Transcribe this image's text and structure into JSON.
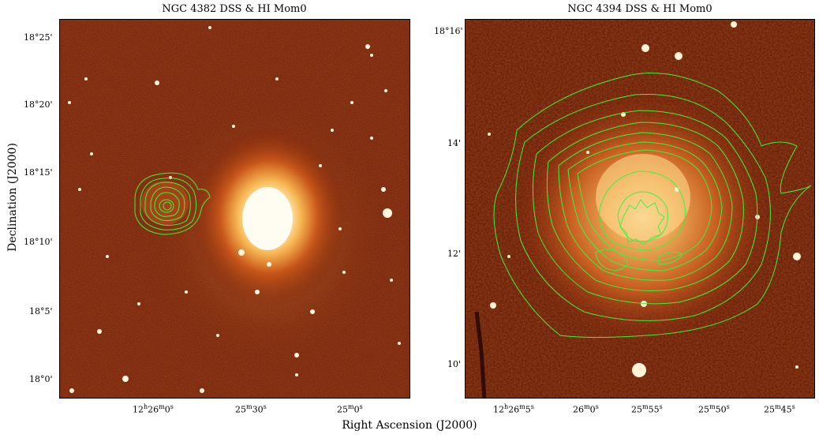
{
  "left_panel": {
    "title": "NGC 4382 DSS & HI Mom0",
    "ra_ticks": [
      {
        "h": "12",
        "hu": "h",
        "m": "26",
        "mu": "m",
        "s": "0",
        "su": "s"
      },
      {
        "h": "",
        "hu": "",
        "m": "25",
        "mu": "m",
        "s": "30",
        "su": "s"
      },
      {
        "h": "",
        "hu": "",
        "m": "25",
        "mu": "m",
        "s": "0",
        "su": "s"
      }
    ],
    "dec_ticks": [
      "18°25'",
      "18°20'",
      "18°15'",
      "18°10'",
      "18°5'",
      "18°0'"
    ]
  },
  "right_panel": {
    "title": "NGC 4394 DSS & HI Mom0",
    "ra_ticks": [
      {
        "h": "12",
        "hu": "h",
        "m": "26",
        "mu": "m",
        "s": "5",
        "su": "s"
      },
      {
        "h": "",
        "hu": "",
        "m": "26",
        "mu": "m",
        "s": "0",
        "su": "s"
      },
      {
        "h": "",
        "hu": "",
        "m": "25",
        "mu": "m",
        "s": "55",
        "su": "s"
      },
      {
        "h": "",
        "hu": "",
        "m": "25",
        "mu": "m",
        "s": "50",
        "su": "s"
      },
      {
        "h": "",
        "hu": "",
        "m": "25",
        "mu": "m",
        "s": "45",
        "su": "s"
      }
    ],
    "dec_ticks": [
      "18°16'",
      "14'",
      "12'",
      "10'"
    ]
  },
  "axes": {
    "ylabel": "Declination (J2000)",
    "xlabel": "Right Ascension (J2000)"
  },
  "colors": {
    "background_dark": "#3a0800",
    "field_red": "#7a1e06",
    "galaxy_core": "#fffbe0",
    "galaxy_halo": "#f2a040",
    "contour": "#3cf23c"
  }
}
